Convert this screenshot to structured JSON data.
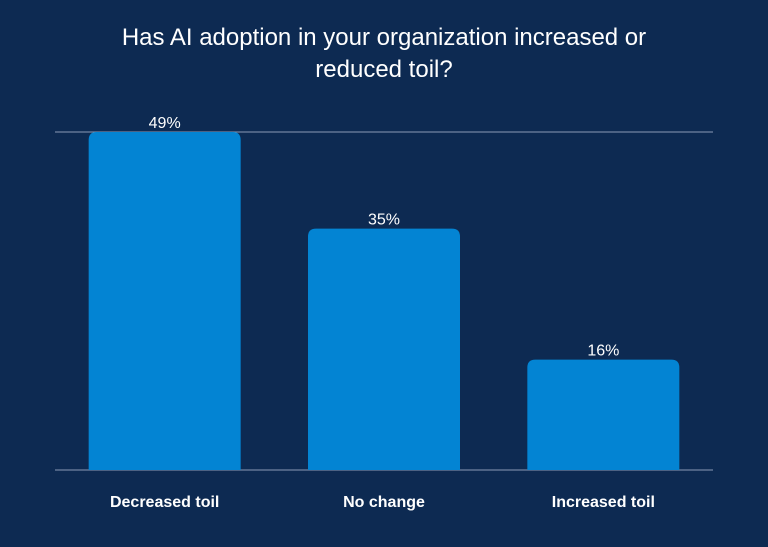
{
  "chart_data": {
    "type": "bar",
    "title": "Has AI adoption in your organization increased or reduced toil?",
    "categories": [
      "Decreased toil",
      "No change",
      "Increased toil"
    ],
    "values": [
      49,
      35,
      16
    ],
    "value_labels": [
      "49%",
      "35%",
      "16%"
    ],
    "xlabel": "",
    "ylabel": "",
    "ylim": [
      0,
      49
    ],
    "grid": false,
    "colors": {
      "background": "#0d2a52",
      "bar": "#0384d3",
      "axis": "#8a9bb5",
      "text": "#ffffff"
    }
  }
}
